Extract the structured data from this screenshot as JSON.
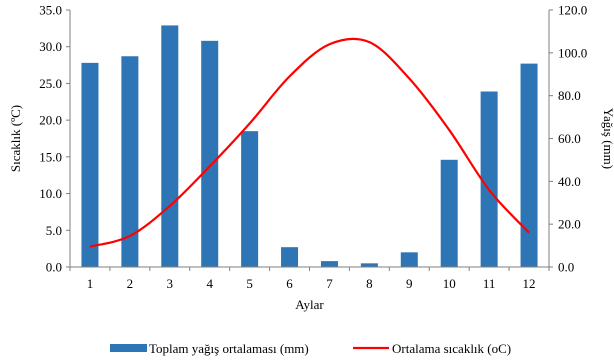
{
  "chart_data": {
    "type": "bar-line-combo",
    "categories": [
      "1",
      "2",
      "3",
      "4",
      "5",
      "6",
      "7",
      "8",
      "9",
      "10",
      "11",
      "12"
    ],
    "xlabel": "Aylar",
    "y_left": {
      "label": "Sıcaklık (ºC)",
      "ylim": [
        0,
        35
      ],
      "ticks": [
        "0.0",
        "5.0",
        "10.0",
        "15.0",
        "20.0",
        "25.0",
        "30.0",
        "35.0"
      ]
    },
    "y_right": {
      "label": "Yağış (mm)",
      "ylim": [
        0,
        120
      ],
      "ticks": [
        "0.0",
        "20.0",
        "40.0",
        "60.0",
        "80.0",
        "100.0",
        "120.0"
      ]
    },
    "series": [
      {
        "name": "Toplam yağış ortalaması (mm)",
        "type": "bar",
        "axis": "left",
        "color": "#2E75B6",
        "values": [
          27.8,
          28.7,
          32.9,
          30.8,
          18.5,
          2.7,
          0.8,
          0.5,
          2.0,
          14.6,
          23.9,
          27.7
        ]
      },
      {
        "name": "Ortalama sıcaklık (oC)",
        "type": "line",
        "axis": "right",
        "color": "#FF0000",
        "smooth": true,
        "values": [
          9.5,
          14.5,
          28.5,
          47.0,
          67.0,
          89.0,
          104.0,
          105.0,
          88.0,
          64.0,
          36.0,
          16.0
        ]
      }
    ],
    "grid": false,
    "legend_position": "bottom"
  }
}
